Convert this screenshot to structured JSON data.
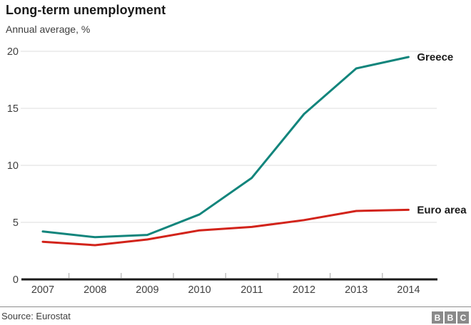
{
  "header": {
    "title": "Long-term unemployment",
    "subtitle": "Annual average, %"
  },
  "chart_data": {
    "type": "line",
    "x": [
      2007,
      2008,
      2009,
      2010,
      2011,
      2012,
      2013,
      2014
    ],
    "series": [
      {
        "name": "Greece",
        "color": "#12857c",
        "values": [
          4.2,
          3.7,
          3.9,
          5.7,
          8.9,
          14.5,
          18.5,
          19.5
        ]
      },
      {
        "name": "Euro area",
        "color": "#d2231a",
        "values": [
          3.3,
          3.0,
          3.5,
          4.3,
          4.6,
          5.2,
          6.0,
          6.1
        ]
      }
    ],
    "title": "Long-term unemployment",
    "subtitle": "Annual average, %",
    "xlabel": "",
    "ylabel": "",
    "ylim": [
      0,
      20
    ],
    "yticks": [
      0,
      5,
      10,
      15,
      20
    ],
    "grid": true,
    "legend_position": "end-of-line-labels"
  },
  "colors": {
    "greece_line": "#12857c",
    "euro_area_line": "#d2231a",
    "gridline": "#dcdcdc",
    "axis_line": "#1a1a1a",
    "tick_mark": "#b3b3b3",
    "axis_label": "#404040",
    "series_label": "#1a1a1a"
  },
  "footer": {
    "source": "Source: Eurostat",
    "logo_letters": [
      "B",
      "B",
      "C"
    ]
  }
}
